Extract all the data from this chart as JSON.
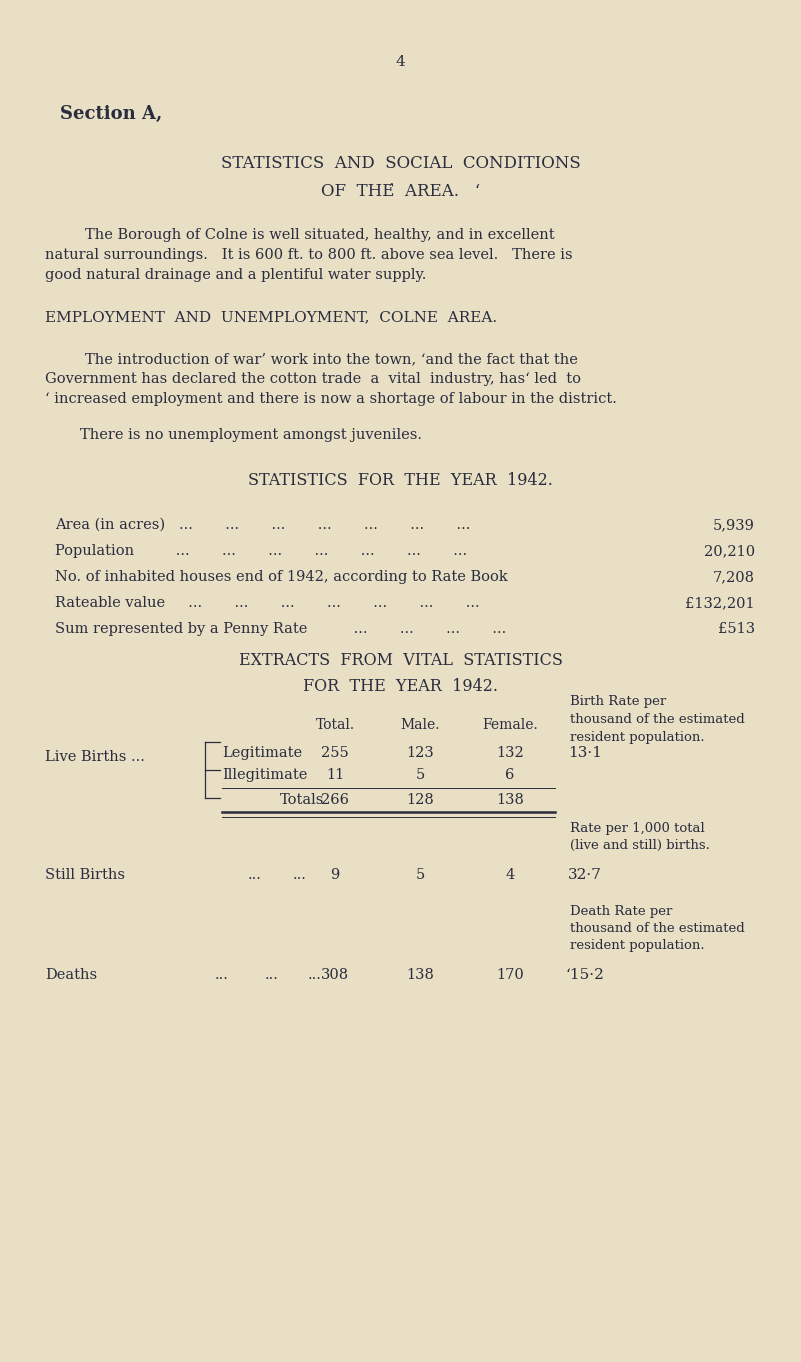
{
  "bg_color": "#e8dfc4",
  "text_color": "#2a2d3e",
  "page_number": "4",
  "section_label": "Section A,",
  "title1": "STATISTICS  AND  SOCIAL  CONDITIONS",
  "title2": "OF  THÉ  AREA.   ‘",
  "para1a": "The Borough of Colne is well situated, healthy, and in excellent",
  "para1b": "natural surroundings.   It is 600 ft. to 800 ft. above sea level.   There is",
  "para1c": "good natural drainage and a plentiful water supply.",
  "heading2": "EMPLOYMENT  AND  UNEMPLOYMENT,  COLNE  AREA.",
  "para2a": "The introduction of war’ work into the town, ‘and the fact that the",
  "para2b": "Government has declared the cotton trade  a  vital  industry, has‘ led  to",
  "para2c": "‘ increased employment and there is now a shortage of labour in the district.",
  "para3": "There is no unemployment amongst juveniles.",
  "heading3": "STATISTICS  FOR  THE  YEAR  1942.",
  "area_label": "Area (in acres)   ...       ...       ...       ...       ...       ...       ...",
  "area_val": "5,939",
  "pop_label": "Population         ...       ...       ...       ...       ...       ...       ...",
  "pop_val": "20,210",
  "houses_label": "No. of inhabited houses end of 1942, according to Rate Book",
  "houses_val": "7,208",
  "rateable_label": "Rateable value     ...       ...       ...       ...       ...       ...       ...",
  "rateable_val": "£132,201",
  "penny_label": "Sum represented by a Penny Rate          ...       ...       ...       ...",
  "penny_val": "£513",
  "heading4a": "EXTRACTS  FROM  VITAL  STATISTICS",
  "heading4b": "FOR  THE  YEAR  1942.",
  "col_total": "Total.",
  "col_male": "Male.",
  "col_female": "Female.",
  "birth_rate_note1": "Birth Rate per",
  "birth_rate_note2": "thousand of the estimated",
  "birth_rate_note3": "resident population.",
  "live_births_lbl": "Live Births ...",
  "leg_lbl": "Legitimate",
  "leg_total": "255",
  "leg_male": "123",
  "leg_female": "132",
  "leg_rate": "13·1",
  "ill_lbl": "Illegitimate",
  "ill_total": "11",
  "ill_male": "5",
  "ill_female": "6",
  "tot_lbl": "Totals",
  "tot_total": "266",
  "tot_male": "128",
  "tot_female": "138",
  "rate_note1": "Rate per 1,000 total",
  "rate_note2": "(live and still) births.",
  "still_lbl": "Still Births",
  "still_dots1": "...",
  "still_dots2": "...",
  "still_total": "9",
  "still_male": "5",
  "still_female": "4",
  "still_rate": "32·7",
  "death_note1": "Death Rate per",
  "death_note2": "thousand of the estimated",
  "death_note3": "resident population.",
  "deaths_lbl": "Deaths",
  "deaths_dots1": "...",
  "deaths_dots2": "...",
  "deaths_dots3": "...",
  "deaths_total": "308",
  "deaths_male": "138",
  "deaths_female": "170",
  "deaths_rate": "‘15·2"
}
